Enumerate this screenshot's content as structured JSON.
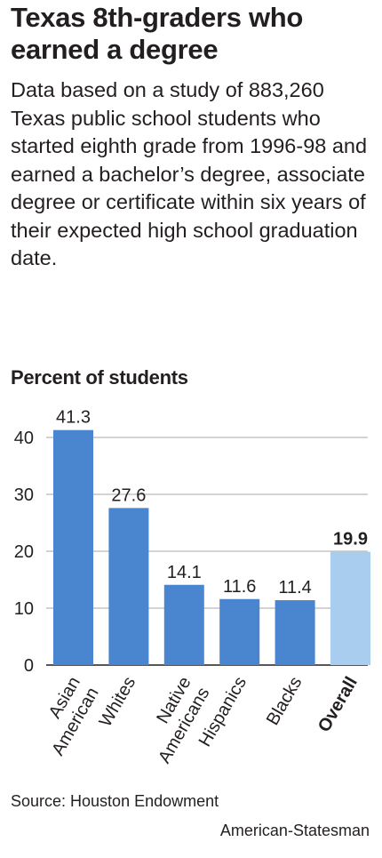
{
  "title": "Texas 8th-graders who earned a degree",
  "subtitle": "Data based on a study of 883,260 Texas public school students who started eighth grade from 1996-98 and earned a bachelor’s degree, associate degree or certificate within six years of their expected high school graduation date.",
  "source": "Source: Houston Endowment",
  "credit": "American-Statesman",
  "chart_data": {
    "type": "bar",
    "ylabel": "Percent of students",
    "xlabel": "",
    "ylim": [
      0,
      40
    ],
    "yticks": [
      0,
      10,
      20,
      30,
      40
    ],
    "grid": true,
    "categories": [
      [
        "Asian",
        "American"
      ],
      [
        "Whites"
      ],
      [
        "Native",
        "Americans"
      ],
      [
        "Hispanics"
      ],
      [
        "Blacks"
      ],
      [
        "Overall"
      ]
    ],
    "values": [
      41.3,
      27.6,
      14.1,
      11.6,
      11.4,
      19.9
    ],
    "value_labels": [
      "41.3",
      "27.6",
      "14.1",
      "11.6",
      "11.4",
      "19.9"
    ],
    "highlight_index": 5,
    "colors": {
      "bar": "#4a86cf",
      "highlight": "#a9cdee",
      "grid": "#b9b9b9",
      "axis": "#231f20",
      "text": "#231f20"
    }
  }
}
